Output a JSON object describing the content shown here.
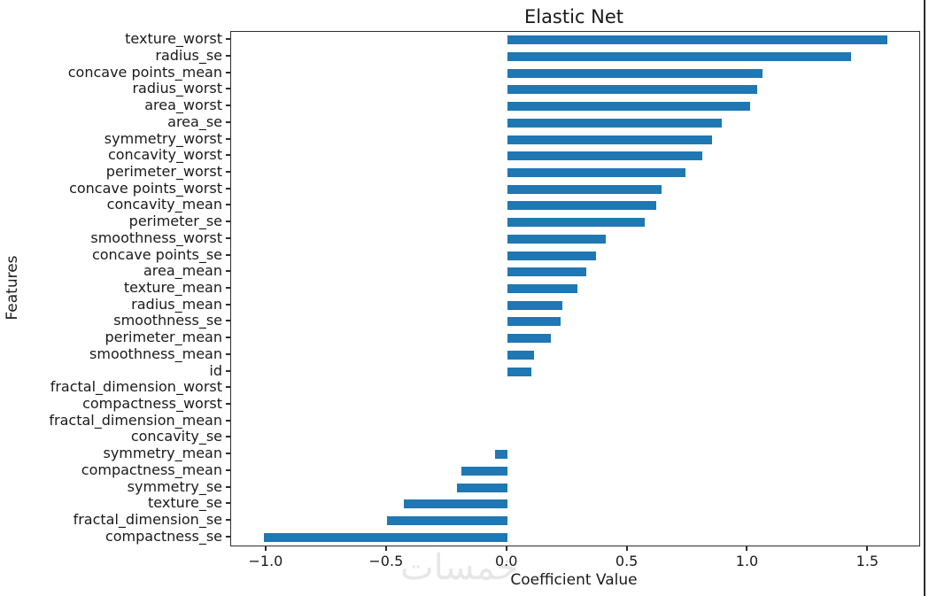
{
  "title": "Elastic Net",
  "watermark": {
    "text": "خمسات"
  },
  "colors": {
    "bar": "#1f77b4",
    "axis": "#2e2e2e",
    "text": "#1a1a1a",
    "watermark": "#e7e7e7",
    "background": "#ffffff"
  },
  "chart_data": {
    "type": "bar",
    "orientation": "horizontal",
    "title": "Elastic Net",
    "xlabel": "Coefficient Value",
    "ylabel": "Features",
    "grid": false,
    "legend": false,
    "bar_color": "#1f77b4",
    "xlim": [
      -1.147,
      1.712
    ],
    "xticks": [
      -1.0,
      -0.5,
      0.0,
      0.5,
      1.0,
      1.5
    ],
    "xtick_labels": [
      "−1.0",
      "−0.5",
      "0.0",
      "0.5",
      "1.0",
      "1.5"
    ],
    "categories": [
      "texture_worst",
      "radius_se",
      "concave points_mean",
      "radius_worst",
      "area_worst",
      "area_se",
      "symmetry_worst",
      "concavity_worst",
      "perimeter_worst",
      "concave points_worst",
      "concavity_mean",
      "perimeter_se",
      "smoothness_worst",
      "concave points_se",
      "area_mean",
      "texture_mean",
      "radius_mean",
      "smoothness_se",
      "perimeter_mean",
      "smoothness_mean",
      "id",
      "fractal_dimension_worst",
      "compactness_worst",
      "fractal_dimension_mean",
      "concavity_se",
      "symmetry_mean",
      "compactness_mean",
      "symmetry_se",
      "texture_se",
      "fractal_dimension_se",
      "compactness_se"
    ],
    "values": [
      1.58,
      1.43,
      1.06,
      1.04,
      1.01,
      0.89,
      0.85,
      0.81,
      0.74,
      0.64,
      0.62,
      0.57,
      0.41,
      0.37,
      0.33,
      0.29,
      0.23,
      0.22,
      0.18,
      0.11,
      0.1,
      0.0,
      0.0,
      0.0,
      0.0,
      -0.05,
      -0.19,
      -0.21,
      -0.43,
      -0.5,
      -1.01
    ]
  }
}
